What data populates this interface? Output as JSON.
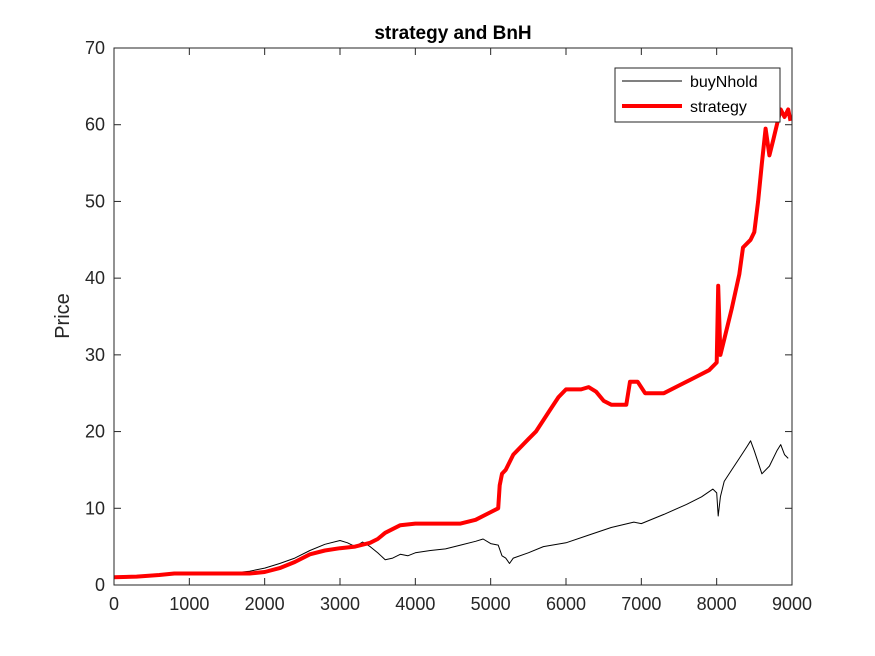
{
  "chart_data": {
    "type": "line",
    "title": "strategy and BnH",
    "xlabel": "",
    "ylabel": "Price",
    "xlim": [
      0,
      9000
    ],
    "ylim": [
      0,
      70
    ],
    "xticks": [
      0,
      1000,
      2000,
      3000,
      4000,
      5000,
      6000,
      7000,
      8000,
      9000
    ],
    "yticks": [
      0,
      10,
      20,
      30,
      40,
      50,
      60,
      70
    ],
    "grid": false,
    "legend_position": "top-right",
    "series": [
      {
        "name": "buyNhold",
        "color": "#000000",
        "points": [
          [
            0,
            1.0
          ],
          [
            300,
            1.1
          ],
          [
            600,
            1.3
          ],
          [
            800,
            1.5
          ],
          [
            1000,
            1.5
          ],
          [
            1300,
            1.55
          ],
          [
            1600,
            1.6
          ],
          [
            1800,
            1.8
          ],
          [
            2000,
            2.2
          ],
          [
            2200,
            2.8
          ],
          [
            2400,
            3.5
          ],
          [
            2600,
            4.5
          ],
          [
            2800,
            5.3
          ],
          [
            3000,
            5.8
          ],
          [
            3100,
            5.5
          ],
          [
            3200,
            5.0
          ],
          [
            3300,
            5.6
          ],
          [
            3400,
            5.0
          ],
          [
            3500,
            4.2
          ],
          [
            3600,
            3.3
          ],
          [
            3700,
            3.5
          ],
          [
            3800,
            4.0
          ],
          [
            3900,
            3.8
          ],
          [
            4000,
            4.2
          ],
          [
            4200,
            4.5
          ],
          [
            4400,
            4.7
          ],
          [
            4600,
            5.2
          ],
          [
            4800,
            5.7
          ],
          [
            4900,
            6.0
          ],
          [
            5000,
            5.4
          ],
          [
            5100,
            5.2
          ],
          [
            5150,
            3.8
          ],
          [
            5200,
            3.5
          ],
          [
            5250,
            2.8
          ],
          [
            5300,
            3.5
          ],
          [
            5500,
            4.2
          ],
          [
            5700,
            5.0
          ],
          [
            6000,
            5.5
          ],
          [
            6300,
            6.5
          ],
          [
            6600,
            7.5
          ],
          [
            6900,
            8.2
          ],
          [
            7000,
            8.0
          ],
          [
            7300,
            9.2
          ],
          [
            7600,
            10.5
          ],
          [
            7800,
            11.5
          ],
          [
            7950,
            12.5
          ],
          [
            8000,
            12.0
          ],
          [
            8020,
            9.0
          ],
          [
            8050,
            11.5
          ],
          [
            8100,
            13.5
          ],
          [
            8200,
            15.0
          ],
          [
            8300,
            16.5
          ],
          [
            8400,
            18.0
          ],
          [
            8450,
            18.8
          ],
          [
            8500,
            17.5
          ],
          [
            8550,
            16.0
          ],
          [
            8600,
            14.5
          ],
          [
            8700,
            15.5
          ],
          [
            8800,
            17.5
          ],
          [
            8850,
            18.3
          ],
          [
            8900,
            17.0
          ],
          [
            8950,
            16.5
          ]
        ]
      },
      {
        "name": "strategy",
        "color": "#ff0000",
        "points": [
          [
            0,
            1.0
          ],
          [
            300,
            1.1
          ],
          [
            600,
            1.3
          ],
          [
            800,
            1.5
          ],
          [
            1000,
            1.5
          ],
          [
            1300,
            1.5
          ],
          [
            1600,
            1.5
          ],
          [
            1800,
            1.5
          ],
          [
            2000,
            1.7
          ],
          [
            2200,
            2.2
          ],
          [
            2400,
            3.0
          ],
          [
            2600,
            4.0
          ],
          [
            2800,
            4.5
          ],
          [
            3000,
            4.8
          ],
          [
            3200,
            5.0
          ],
          [
            3400,
            5.5
          ],
          [
            3500,
            6.0
          ],
          [
            3600,
            6.8
          ],
          [
            3800,
            7.8
          ],
          [
            4000,
            8.0
          ],
          [
            4300,
            8.0
          ],
          [
            4600,
            8.0
          ],
          [
            4800,
            8.5
          ],
          [
            5000,
            9.5
          ],
          [
            5100,
            10.0
          ],
          [
            5120,
            13.0
          ],
          [
            5150,
            14.5
          ],
          [
            5200,
            15.0
          ],
          [
            5300,
            17.0
          ],
          [
            5500,
            19.0
          ],
          [
            5600,
            20.0
          ],
          [
            5700,
            21.5
          ],
          [
            5800,
            23.0
          ],
          [
            5900,
            24.5
          ],
          [
            6000,
            25.5
          ],
          [
            6200,
            25.5
          ],
          [
            6300,
            25.8
          ],
          [
            6400,
            25.2
          ],
          [
            6500,
            24.0
          ],
          [
            6600,
            23.5
          ],
          [
            6800,
            23.5
          ],
          [
            6850,
            26.5
          ],
          [
            6950,
            26.5
          ],
          [
            7050,
            25.0
          ],
          [
            7300,
            25.0
          ],
          [
            7500,
            26.0
          ],
          [
            7700,
            27.0
          ],
          [
            7900,
            28.0
          ],
          [
            8000,
            29.0
          ],
          [
            8020,
            39.0
          ],
          [
            8050,
            30.0
          ],
          [
            8100,
            32.0
          ],
          [
            8200,
            36.0
          ],
          [
            8300,
            40.5
          ],
          [
            8350,
            44.0
          ],
          [
            8450,
            45.0
          ],
          [
            8500,
            46.0
          ],
          [
            8550,
            50.0
          ],
          [
            8600,
            55.0
          ],
          [
            8650,
            59.5
          ],
          [
            8700,
            56.0
          ],
          [
            8750,
            58.0
          ],
          [
            8800,
            60.0
          ],
          [
            8850,
            62.0
          ],
          [
            8900,
            61.0
          ],
          [
            8950,
            62.0
          ],
          [
            8980,
            60.5
          ]
        ]
      }
    ]
  }
}
